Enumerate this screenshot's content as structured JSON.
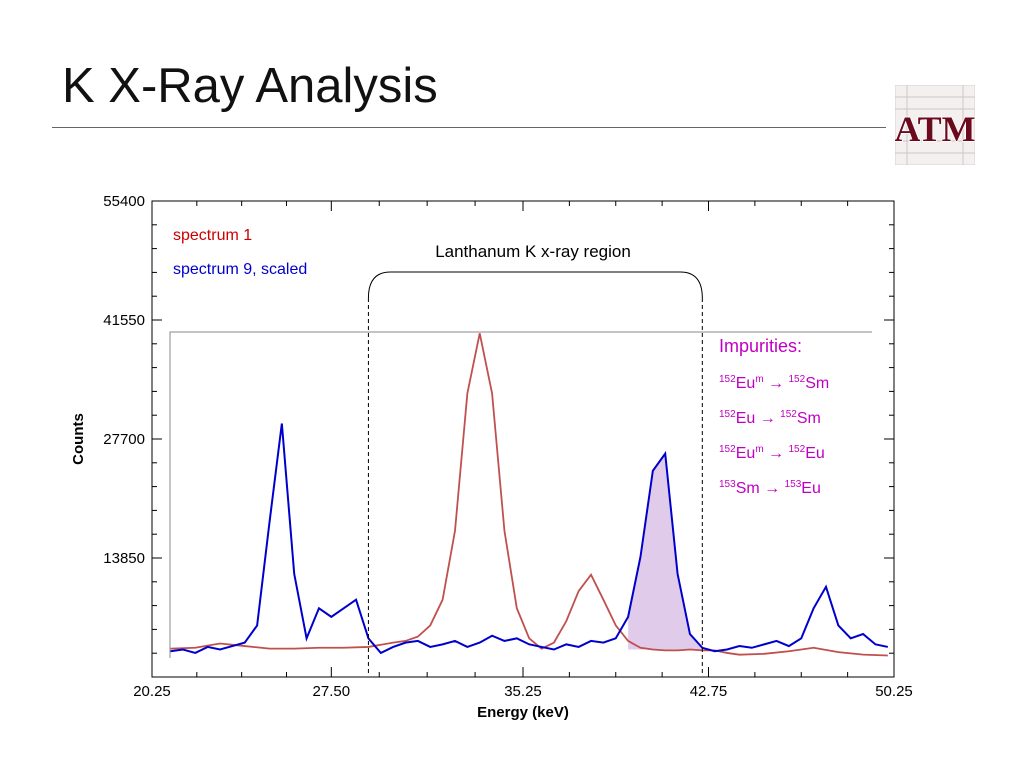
{
  "slide": {
    "title": "K X-Ray Analysis"
  },
  "logo": {
    "icon": "texas-am-logo",
    "text": "ATM",
    "color": "#6b0a1c"
  },
  "chart_data": {
    "type": "line",
    "xlabel": "Energy (keV)",
    "ylabel": "Counts",
    "xlim": [
      20.25,
      50.25
    ],
    "ylim": [
      0,
      55400
    ],
    "x_ticks": [
      20.25,
      27.5,
      35.25,
      42.75,
      50.25
    ],
    "x_tick_labels": [
      "20.25",
      "27.50",
      "35.25",
      "42.75",
      "50.25"
    ],
    "y_ticks": [
      13850,
      27700,
      41550,
      55400
    ],
    "y_tick_labels": [
      "13850",
      "27700",
      "41550",
      "55400"
    ],
    "grid": false,
    "legend_position": "top-left",
    "series": [
      {
        "name": "spectrum 1",
        "color": "#c0504d",
        "x": [
          21,
          22,
          23,
          24,
          25,
          26,
          27,
          28,
          29,
          30,
          30.5,
          31,
          31.5,
          32,
          32.5,
          33,
          33.5,
          34,
          34.5,
          35,
          35.5,
          36,
          36.5,
          37,
          37.5,
          38,
          38.5,
          39,
          39.5,
          40,
          40.5,
          41,
          41.5,
          42,
          42.5,
          43,
          43.5,
          44,
          45,
          46,
          47,
          48,
          49,
          50
        ],
        "y": [
          3300,
          3400,
          3900,
          3600,
          3300,
          3300,
          3400,
          3400,
          3500,
          4000,
          4200,
          4700,
          6000,
          9000,
          17000,
          33000,
          40000,
          33000,
          17000,
          8000,
          4500,
          3300,
          4000,
          6500,
          10000,
          11900,
          9000,
          6000,
          4200,
          3400,
          3200,
          3100,
          3100,
          3200,
          3100,
          3100,
          2800,
          2600,
          2700,
          3000,
          3400,
          2900,
          2600,
          2500
        ]
      },
      {
        "name": "spectrum 9, scaled",
        "color": "#0000cc",
        "x": [
          21,
          21.5,
          22,
          22.5,
          23,
          23.5,
          24,
          24.5,
          25,
          25.5,
          26,
          26.5,
          27,
          27.5,
          28,
          28.5,
          29,
          29.5,
          30,
          30.5,
          31,
          31.5,
          32,
          32.5,
          33,
          33.5,
          34,
          34.5,
          35,
          35.5,
          36,
          36.5,
          37,
          37.5,
          38,
          38.5,
          39,
          39.5,
          40,
          40.5,
          41,
          41.5,
          42,
          42.5,
          43,
          43.5,
          44,
          44.5,
          45,
          45.5,
          46,
          46.5,
          47,
          47.5,
          48,
          48.5,
          49,
          49.5,
          50
        ],
        "y": [
          3000,
          3200,
          2800,
          3500,
          3200,
          3600,
          4000,
          6000,
          18000,
          29500,
          12000,
          4500,
          8000,
          7000,
          8000,
          9000,
          4500,
          2800,
          3500,
          4000,
          4200,
          3500,
          3800,
          4200,
          3500,
          4000,
          4800,
          4200,
          4500,
          3800,
          3500,
          3200,
          3800,
          3500,
          4200,
          4000,
          4500,
          7000,
          14000,
          24000,
          26000,
          12000,
          5000,
          3400,
          3000,
          3200,
          3600,
          3400,
          3800,
          4200,
          3600,
          4500,
          8000,
          10500,
          6000,
          4500,
          5000,
          3800,
          3500
        ]
      }
    ],
    "annotations": {
      "region_label": "Lanthanum K x-ray region",
      "region_range": [
        29.0,
        42.5
      ],
      "impurities_title": "Impurities:",
      "impurities_color": "#c000c0",
      "impurities": [
        {
          "from_mass": "152",
          "from_sym": "Eu",
          "from_state": "m",
          "arrow": "→",
          "to_mass": "152",
          "to_sym": "Sm"
        },
        {
          "from_mass": "152",
          "from_sym": "Eu",
          "from_state": "",
          "arrow": "→",
          "to_mass": "152",
          "to_sym": "Sm"
        },
        {
          "from_mass": "152",
          "from_sym": "Eu",
          "from_state": "m",
          "arrow": "→",
          "to_mass": "152",
          "to_sym": "Eu"
        },
        {
          "from_mass": "153",
          "from_sym": "Sm",
          "from_state": "",
          "arrow": "→",
          "to_mass": "153",
          "to_sym": "Eu"
        }
      ],
      "shaded_peak_range": [
        39.5,
        42.5
      ],
      "shaded_color": "#c8a0d8"
    }
  }
}
